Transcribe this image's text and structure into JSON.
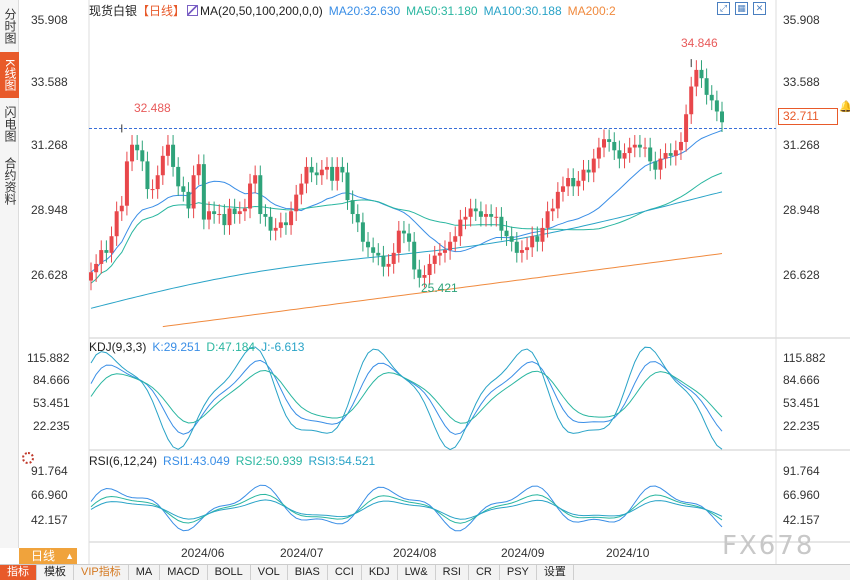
{
  "left_tabs": [
    {
      "label": "分时图",
      "active": false
    },
    {
      "label": "K线图",
      "active": true
    },
    {
      "label": "闪电图",
      "active": false
    },
    {
      "label": "合约资料",
      "active": false
    }
  ],
  "header": {
    "symbol": "现货白银",
    "period": "【日线】",
    "ma_params": "MA(20,50,100,200,0,0)",
    "ma20": "MA20:32.630",
    "ma50": "MA50:31.180",
    "ma100": "MA100:30.188",
    "ma200": "MA200:2"
  },
  "kdj": {
    "title": "KDJ(9,3,3)",
    "k": "K:29.251",
    "d": "D:47.184",
    "j": "J:-6.613"
  },
  "rsi": {
    "title": "RSI(6,12,24)",
    "rsi1": "RSI1:43.049",
    "rsi2": "RSI2:50.939",
    "rsi3": "RSI3:54.521"
  },
  "price_axis": [
    "35.908",
    "33.588",
    "31.268",
    "28.948",
    "26.628"
  ],
  "kdj_axis": [
    "115.882",
    "84.666",
    "53.451",
    "22.235"
  ],
  "rsi_axis": [
    "91.764",
    "66.960",
    "42.157"
  ],
  "dates": [
    "2024/06",
    "2024/07",
    "2024/08",
    "2024/09",
    "2024/10"
  ],
  "annotations": {
    "high": "34.846",
    "mid_high": "32.488",
    "low": "25.421"
  },
  "current_price": "32.711",
  "bottom_left": {
    "label": "日线",
    "arrow": "▲"
  },
  "toolbar": [
    "指标",
    "模板",
    "VIP指标",
    "MA",
    "MACD",
    "BOLL",
    "VOL",
    "BIAS",
    "CCI",
    "KDJ",
    "LW&",
    "RSI",
    "CR",
    "PSY",
    "设置"
  ],
  "watermark": "FX678",
  "colors": {
    "up": "#e8474b",
    "down": "#2ea37a",
    "ma20": "#3a8ee6",
    "ma50": "#2ab6a0",
    "ma100": "#29a3c7",
    "ma200": "#f08a3e",
    "accent": "#e85a2a"
  },
  "chart_data": {
    "type": "candlestick",
    "x": [
      "2024-05-08",
      "2024-05-09",
      "2024-05-10",
      "2024-05-13",
      "2024-05-14",
      "2024-05-15",
      "2024-05-16",
      "2024-05-17",
      "2024-05-20",
      "2024-05-21",
      "2024-05-22",
      "2024-05-23",
      "2024-05-24",
      "2024-05-27",
      "2024-05-28",
      "2024-05-29",
      "2024-05-30",
      "2024-05-31",
      "2024-06-03",
      "2024-06-04",
      "2024-06-05",
      "2024-06-06",
      "2024-06-07",
      "2024-06-10",
      "2024-06-11",
      "2024-06-12",
      "2024-06-13",
      "2024-06-14",
      "2024-06-17",
      "2024-06-18",
      "2024-06-19",
      "2024-06-20",
      "2024-06-21",
      "2024-06-24",
      "2024-06-25",
      "2024-06-26",
      "2024-06-27",
      "2024-06-28",
      "2024-07-01",
      "2024-07-02",
      "2024-07-03",
      "2024-07-04",
      "2024-07-05",
      "2024-07-08",
      "2024-07-09",
      "2024-07-10",
      "2024-07-11",
      "2024-07-12",
      "2024-07-15",
      "2024-07-16",
      "2024-07-17",
      "2024-07-18",
      "2024-07-19",
      "2024-07-22",
      "2024-07-23",
      "2024-07-24",
      "2024-07-25",
      "2024-07-26",
      "2024-07-29",
      "2024-07-30",
      "2024-07-31",
      "2024-08-01",
      "2024-08-02",
      "2024-08-05",
      "2024-08-06",
      "2024-08-07",
      "2024-08-08",
      "2024-08-09",
      "2024-08-12",
      "2024-08-13",
      "2024-08-14",
      "2024-08-15",
      "2024-08-16",
      "2024-08-19",
      "2024-08-20",
      "2024-08-21",
      "2024-08-22",
      "2024-08-23",
      "2024-08-26",
      "2024-08-27",
      "2024-08-28",
      "2024-08-29",
      "2024-08-30",
      "2024-09-02",
      "2024-09-03",
      "2024-09-04",
      "2024-09-05",
      "2024-09-06",
      "2024-09-09",
      "2024-09-10",
      "2024-09-11",
      "2024-09-12",
      "2024-09-13",
      "2024-09-16",
      "2024-09-17",
      "2024-09-18",
      "2024-09-19",
      "2024-09-20",
      "2024-09-23",
      "2024-09-24",
      "2024-09-25",
      "2024-09-26",
      "2024-09-27",
      "2024-09-30",
      "2024-10-01",
      "2024-10-02",
      "2024-10-03",
      "2024-10-04",
      "2024-10-07",
      "2024-10-08",
      "2024-10-09",
      "2024-10-10",
      "2024-10-11",
      "2024-10-14",
      "2024-10-15",
      "2024-10-16",
      "2024-10-17",
      "2024-10-18",
      "2024-10-21",
      "2024-10-22",
      "2024-10-23",
      "2024-10-24",
      "2024-10-25",
      "2024-10-28"
    ],
    "close": [
      27.3,
      27.6,
      28.1,
      28.0,
      28.6,
      29.5,
      29.7,
      31.3,
      31.9,
      31.7,
      31.3,
      30.3,
      30.3,
      30.8,
      31.5,
      31.9,
      31.1,
      30.4,
      30.2,
      29.6,
      30.8,
      31.2,
      29.2,
      29.5,
      29.4,
      29.4,
      29.0,
      29.6,
      29.4,
      29.5,
      29.6,
      30.5,
      30.8,
      29.4,
      29.3,
      28.8,
      28.9,
      29.1,
      29.0,
      29.5,
      30.1,
      30.5,
      31.1,
      30.9,
      30.8,
      31.0,
      31.1,
      30.6,
      31.1,
      30.9,
      29.9,
      29.4,
      29.1,
      28.4,
      28.2,
      28.0,
      27.9,
      27.5,
      27.6,
      28.0,
      28.8,
      28.7,
      28.4,
      27.4,
      27.1,
      27.2,
      27.6,
      27.9,
      28.0,
      28.1,
      28.4,
      28.6,
      29.2,
      29.3,
      29.6,
      29.5,
      29.3,
      29.4,
      29.3,
      29.3,
      28.8,
      28.6,
      28.4,
      28.0,
      28.1,
      28.2,
      28.6,
      28.4,
      28.9,
      29.5,
      29.6,
      30.2,
      30.4,
      30.7,
      30.4,
      30.6,
      31.0,
      30.9,
      31.4,
      31.8,
      32.1,
      32.0,
      31.7,
      31.4,
      31.6,
      31.8,
      31.9,
      31.8,
      31.8,
      31.3,
      31.0,
      31.4,
      31.6,
      31.5,
      31.7,
      32.0,
      33.0,
      34.0,
      34.6,
      34.3,
      33.7,
      33.5,
      33.1,
      32.71
    ],
    "annotations": [
      {
        "label": "34.846",
        "type": "high"
      },
      {
        "label": "32.488",
        "type": "high"
      },
      {
        "label": "25.421",
        "type": "low"
      }
    ],
    "y_axis_ticks": [
      35.908,
      33.588,
      31.268,
      28.948,
      26.628
    ],
    "ylim": [
      25.0,
      36.4
    ],
    "series_labels": [
      "MA20",
      "MA50",
      "MA100",
      "MA200"
    ]
  }
}
